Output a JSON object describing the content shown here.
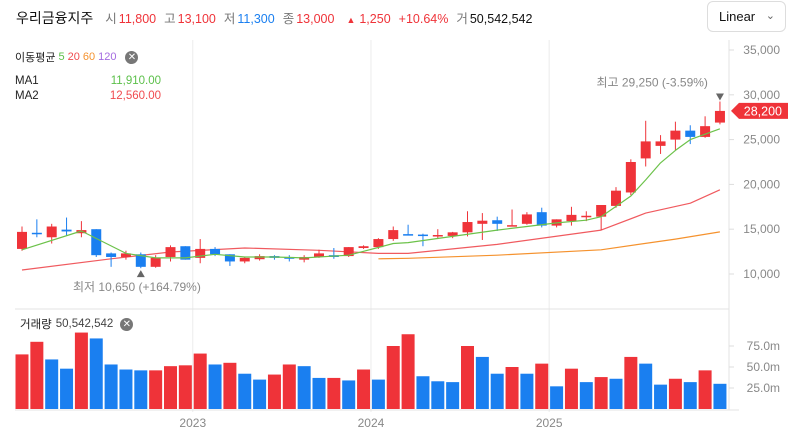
{
  "header": {
    "stock_name": "우리금융지주",
    "open_label": "시",
    "open": "11,800",
    "high_label": "고",
    "high": "13,100",
    "low_label": "저",
    "low": "11,300",
    "close_label": "종",
    "close": "13,000",
    "change_icon": "triangle-up-icon",
    "change": "1,250",
    "change_pct": "+10.64%",
    "volume_label": "거",
    "volume": "50,542,542"
  },
  "scale_dropdown": {
    "selected": "Linear"
  },
  "ma_legend": {
    "title": "이동평균",
    "periods": [
      "5",
      "20",
      "60",
      "120"
    ],
    "colors": [
      "#5cc04a",
      "#f04b4f",
      "#f5922e",
      "#a46be0"
    ]
  },
  "ma_values": [
    {
      "name": "MA1",
      "value": "11,910.00",
      "color": "#5cc04a"
    },
    {
      "name": "MA2",
      "value": "12,560.00",
      "color": "#f04b4f"
    }
  ],
  "volume_legend": {
    "title": "거래량",
    "value": "50,542,542"
  },
  "colors": {
    "up": "#ef3339",
    "down": "#1a7ff0",
    "ma5": "#6cc24a",
    "ma20": "#f05a5f",
    "ma60": "#f5922e"
  },
  "chart_data": {
    "type": "candlestick",
    "price_axis": {
      "ticks": [
        "10,000",
        "15,000",
        "20,000",
        "25,000",
        "30,000",
        "35,000"
      ],
      "tick_values": [
        10000,
        15000,
        20000,
        25000,
        30000,
        35000
      ],
      "range": [
        7500,
        36500
      ]
    },
    "volume_axis": {
      "ticks": [
        "25.0m",
        "50.0m",
        "75.0m"
      ],
      "tick_values": [
        25,
        50,
        75
      ],
      "unit": "m"
    },
    "x_labels": [
      {
        "label": "2023",
        "index": 11.5
      },
      {
        "label": "2024",
        "index": 23.5
      },
      {
        "label": "2025",
        "index": 35.5
      }
    ],
    "last_price": {
      "label": "28,200",
      "value": 28200
    },
    "highest": {
      "label": "최고",
      "text": "29,250 (-3.59%)",
      "value": 29250,
      "index": 47
    },
    "lowest": {
      "label": "최저",
      "text": "10,650 (+164.79%)",
      "value": 10650,
      "index": 8
    },
    "ohlc": [
      [
        12800,
        15300,
        12600,
        14700
      ],
      [
        14600,
        16100,
        14100,
        14450
      ],
      [
        14100,
        15600,
        13400,
        15300
      ],
      [
        14950,
        16300,
        14300,
        14750
      ],
      [
        14550,
        15900,
        14100,
        14900
      ],
      [
        15000,
        15000,
        11900,
        12100
      ],
      [
        12300,
        12400,
        10800,
        11900
      ],
      [
        11900,
        12600,
        11600,
        12300
      ],
      [
        12200,
        12400,
        10650,
        10800
      ],
      [
        10800,
        12100,
        10700,
        11800
      ],
      [
        11900,
        13200,
        11400,
        13000
      ],
      [
        13100,
        13100,
        11600,
        11600
      ],
      [
        11800,
        13900,
        11200,
        12800
      ],
      [
        12800,
        13000,
        12000,
        12200
      ],
      [
        12200,
        12200,
        10900,
        11400
      ],
      [
        11400,
        11900,
        11200,
        11800
      ],
      [
        11650,
        12200,
        11500,
        12000
      ],
      [
        12000,
        12100,
        11600,
        11800
      ],
      [
        11900,
        12100,
        11400,
        11700
      ],
      [
        11600,
        12100,
        11300,
        11900
      ],
      [
        11900,
        12700,
        11800,
        12300
      ],
      [
        12100,
        12900,
        11700,
        11900
      ],
      [
        12000,
        13000,
        11900,
        13000
      ],
      [
        12900,
        13200,
        12800,
        13100
      ],
      [
        13000,
        14000,
        12800,
        13900
      ],
      [
        13900,
        15300,
        13700,
        14900
      ],
      [
        14450,
        15500,
        14300,
        14350
      ],
      [
        14400,
        14500,
        13100,
        14250
      ],
      [
        14200,
        15000,
        13900,
        14350
      ],
      [
        14250,
        14700,
        14000,
        14650
      ],
      [
        14650,
        17000,
        14200,
        15800
      ],
      [
        15600,
        16800,
        13800,
        15950
      ],
      [
        16000,
        16400,
        14800,
        15600
      ],
      [
        15300,
        17200,
        15300,
        15450
      ],
      [
        15600,
        16900,
        15500,
        16650
      ],
      [
        16900,
        17400,
        15200,
        15400
      ],
      [
        15400,
        16100,
        15200,
        16100
      ],
      [
        15900,
        17500,
        15400,
        16600
      ],
      [
        16400,
        17000,
        15900,
        16500
      ],
      [
        16400,
        17700,
        14900,
        17700
      ],
      [
        17600,
        19700,
        17400,
        19300
      ],
      [
        19100,
        22800,
        18800,
        22500
      ],
      [
        22900,
        27100,
        22000,
        24800
      ],
      [
        24300,
        25500,
        23400,
        24800
      ],
      [
        25000,
        27000,
        23800,
        26000
      ],
      [
        26000,
        26600,
        24500,
        25300
      ],
      [
        25300,
        27600,
        25200,
        26500
      ],
      [
        26900,
        29250,
        26700,
        28200
      ]
    ],
    "volume_m": [
      65,
      80,
      59,
      48,
      91,
      84,
      53,
      47,
      46,
      46,
      51,
      52,
      66,
      53,
      55,
      42,
      35,
      41,
      53,
      51,
      37,
      37,
      34,
      47,
      35,
      75,
      89,
      39,
      33,
      32,
      75,
      62,
      42,
      50,
      42,
      54,
      27,
      48,
      32,
      38,
      36,
      62,
      54,
      29,
      36,
      32,
      46,
      30
    ],
    "ma5": [
      [
        0,
        12700
      ],
      [
        4,
        14800
      ],
      [
        7,
        12300
      ],
      [
        9,
        11800
      ],
      [
        11,
        11800
      ],
      [
        13,
        12200
      ],
      [
        15,
        11900
      ],
      [
        17,
        11900
      ],
      [
        19,
        11800
      ],
      [
        22,
        12100
      ],
      [
        25,
        13400
      ],
      [
        26,
        13500
      ],
      [
        29,
        14200
      ],
      [
        32,
        14900
      ],
      [
        34,
        15300
      ],
      [
        36,
        15700
      ],
      [
        38,
        16000
      ],
      [
        39,
        16400
      ],
      [
        41,
        18700
      ],
      [
        42,
        20500
      ],
      [
        43,
        22400
      ],
      [
        44,
        23800
      ],
      [
        45,
        25000
      ],
      [
        47,
        26200
      ]
    ],
    "ma20": [
      [
        0,
        10450
      ],
      [
        6,
        11700
      ],
      [
        10,
        12450
      ],
      [
        15,
        12900
      ],
      [
        20,
        12650
      ],
      [
        24,
        12300
      ],
      [
        26,
        12300
      ],
      [
        32,
        13300
      ],
      [
        39,
        14900
      ],
      [
        42,
        16800
      ],
      [
        45,
        17900
      ],
      [
        47,
        19400
      ]
    ],
    "ma60": [
      [
        24,
        11700
      ],
      [
        26,
        11750
      ],
      [
        32,
        12100
      ],
      [
        39,
        12700
      ],
      [
        44,
        13900
      ],
      [
        47,
        14700
      ]
    ]
  }
}
